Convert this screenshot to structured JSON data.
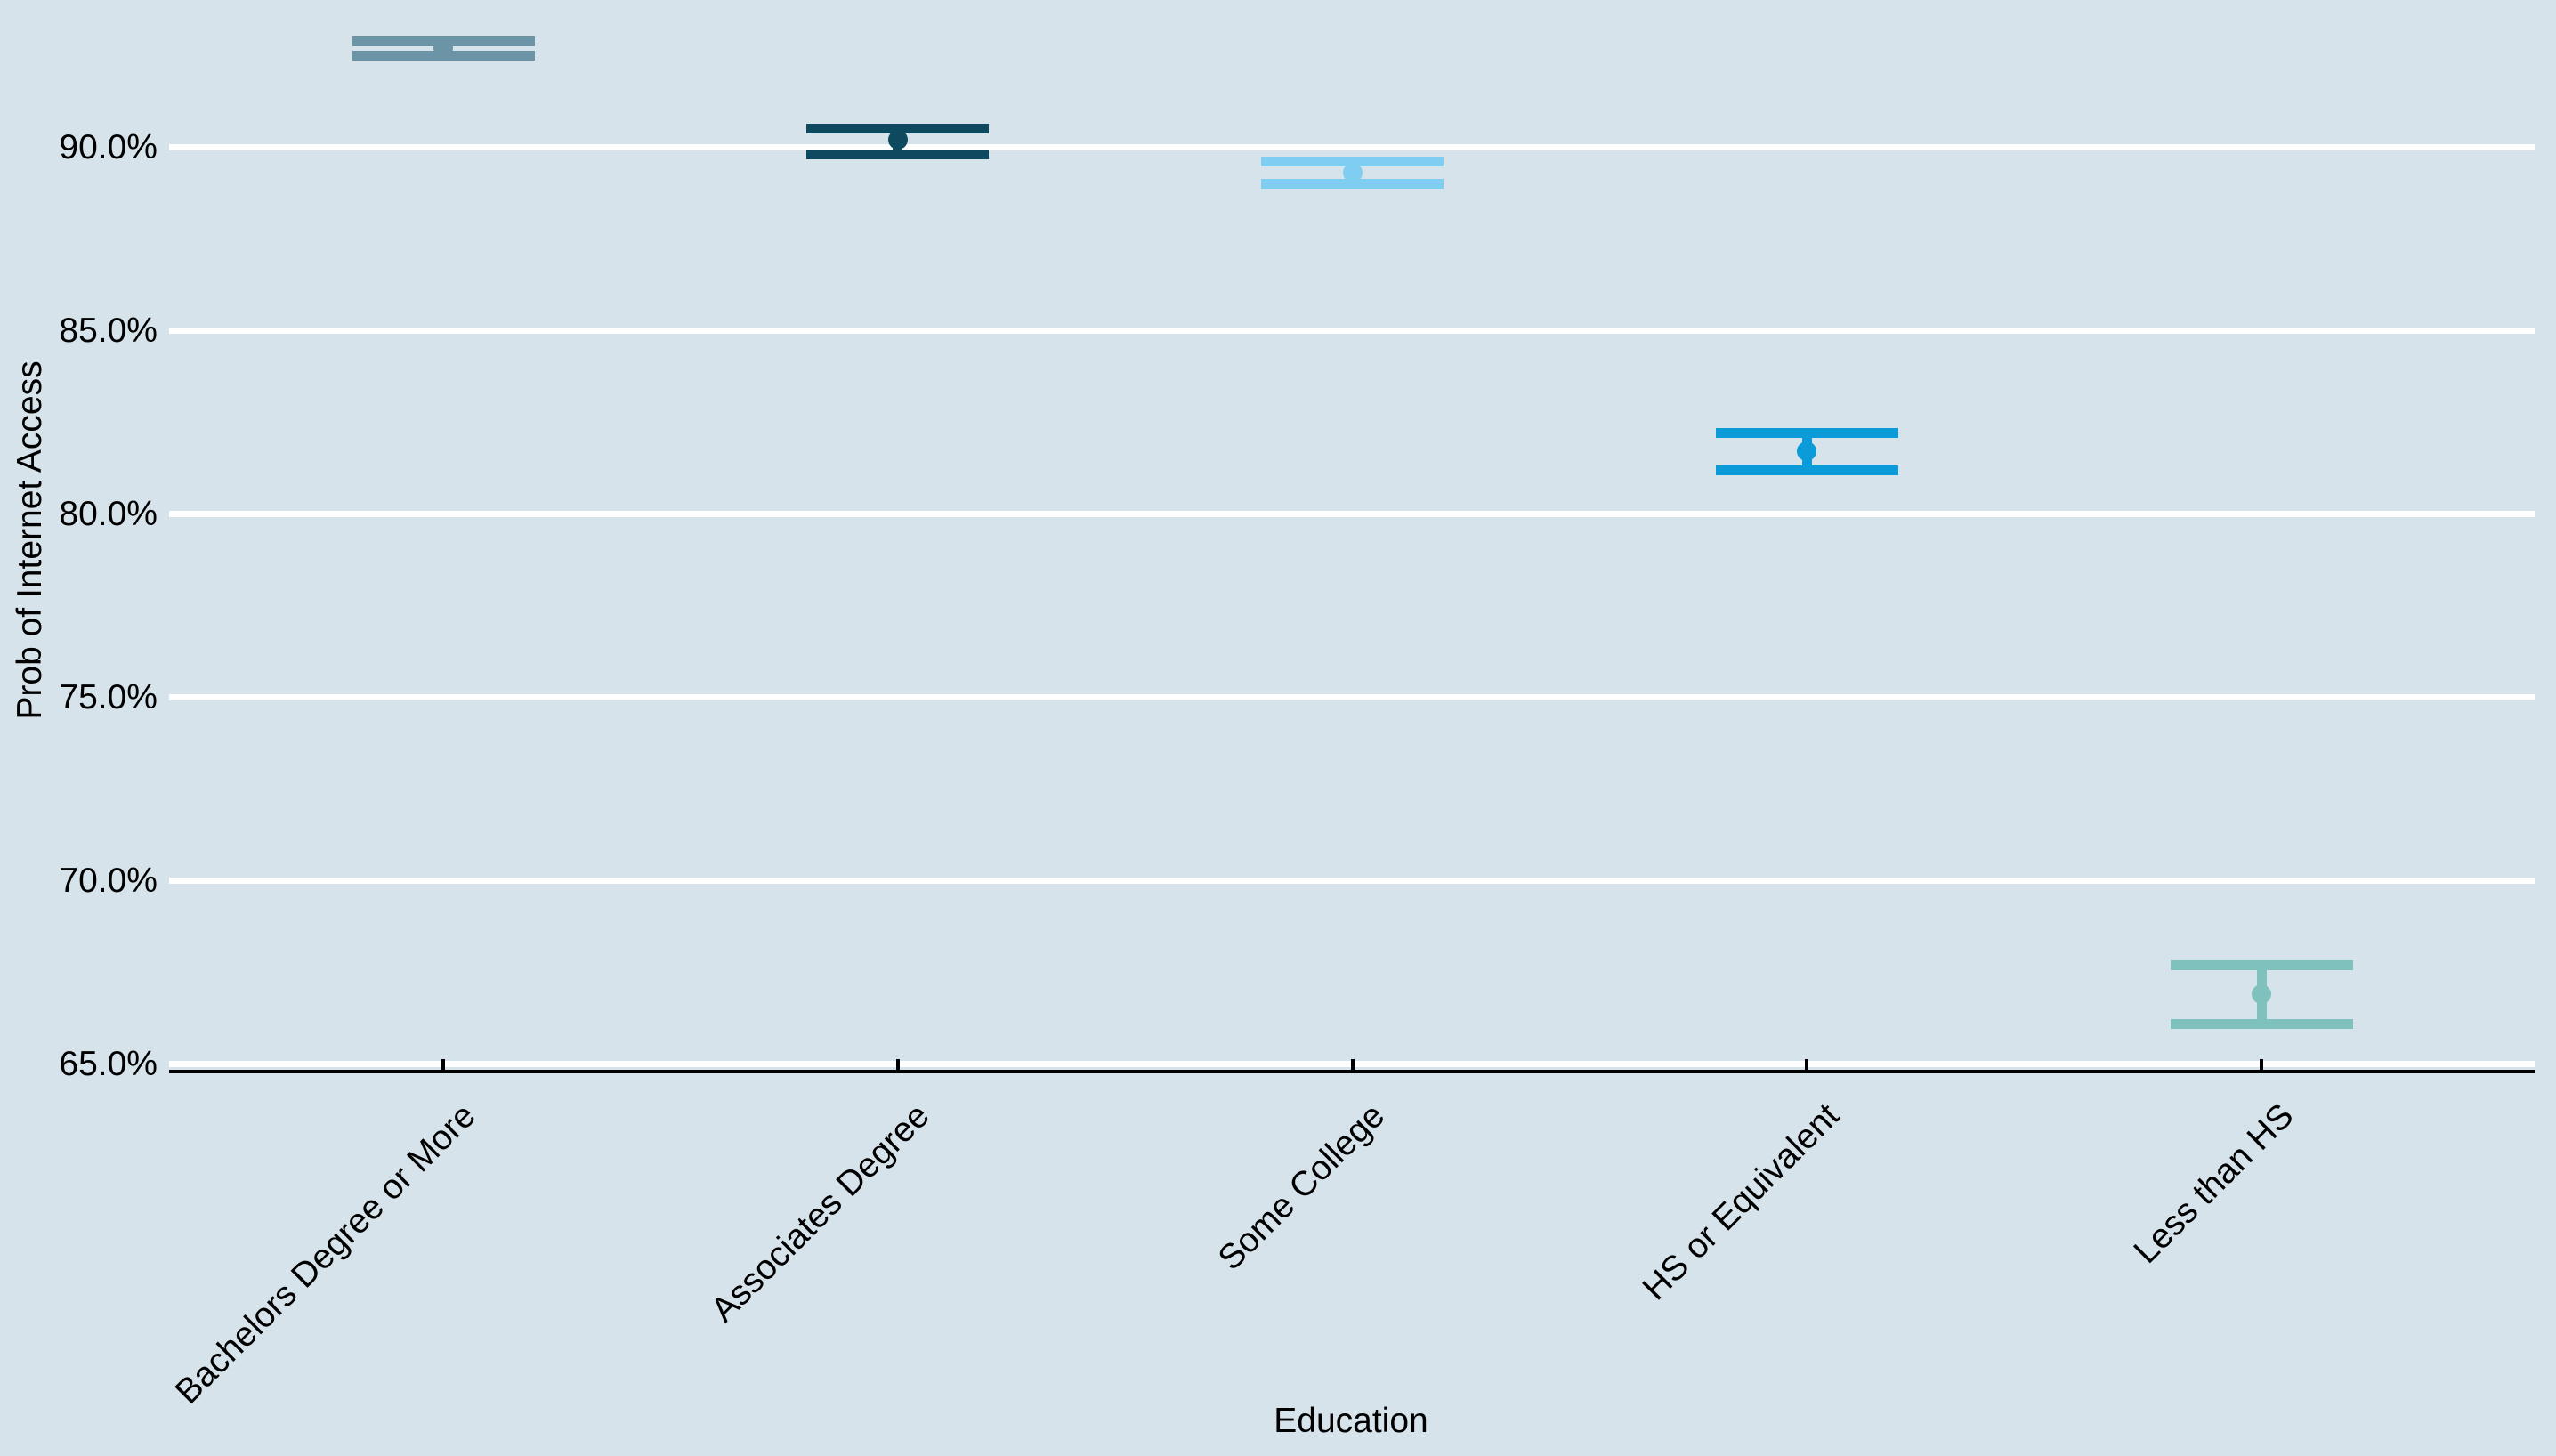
{
  "figure": {
    "background_color": "#D7E3EA",
    "grid_color": "#FFFFFF",
    "axis_color": "#000000",
    "text_color": "#000000"
  },
  "chart_data": {
    "type": "scatter",
    "subtype": "point-estimate-with-error-bars",
    "title": "",
    "xlabel": "Education",
    "ylabel": "Prob of Internet Access",
    "categories": [
      "Bachelors Degree or More",
      "Associates Degree",
      "Some College",
      "HS or Equivalent",
      "Less than HS"
    ],
    "series": [
      {
        "name": "Prob of Internet Access",
        "values": [
          92.7,
          90.2,
          89.3,
          81.7,
          66.9
        ],
        "ci_low": [
          92.5,
          89.8,
          89.0,
          81.2,
          66.1
        ],
        "ci_high": [
          92.9,
          90.5,
          89.6,
          82.2,
          67.7
        ],
        "units": "percent"
      }
    ],
    "point_colors": [
      "#6B95A7",
      "#0D4A60",
      "#7FCEF2",
      "#0B9BD8",
      "#7EC1BD"
    ],
    "ylim": [
      64.8,
      94.0
    ],
    "yticks": {
      "values": [
        90,
        85,
        80,
        75,
        70,
        65
      ],
      "labels": [
        "90.0%",
        "85.0%",
        "80.0%",
        "75.0%",
        "70.0%",
        "65.0%"
      ]
    },
    "grid": "horizontal",
    "legend_position": "none"
  }
}
